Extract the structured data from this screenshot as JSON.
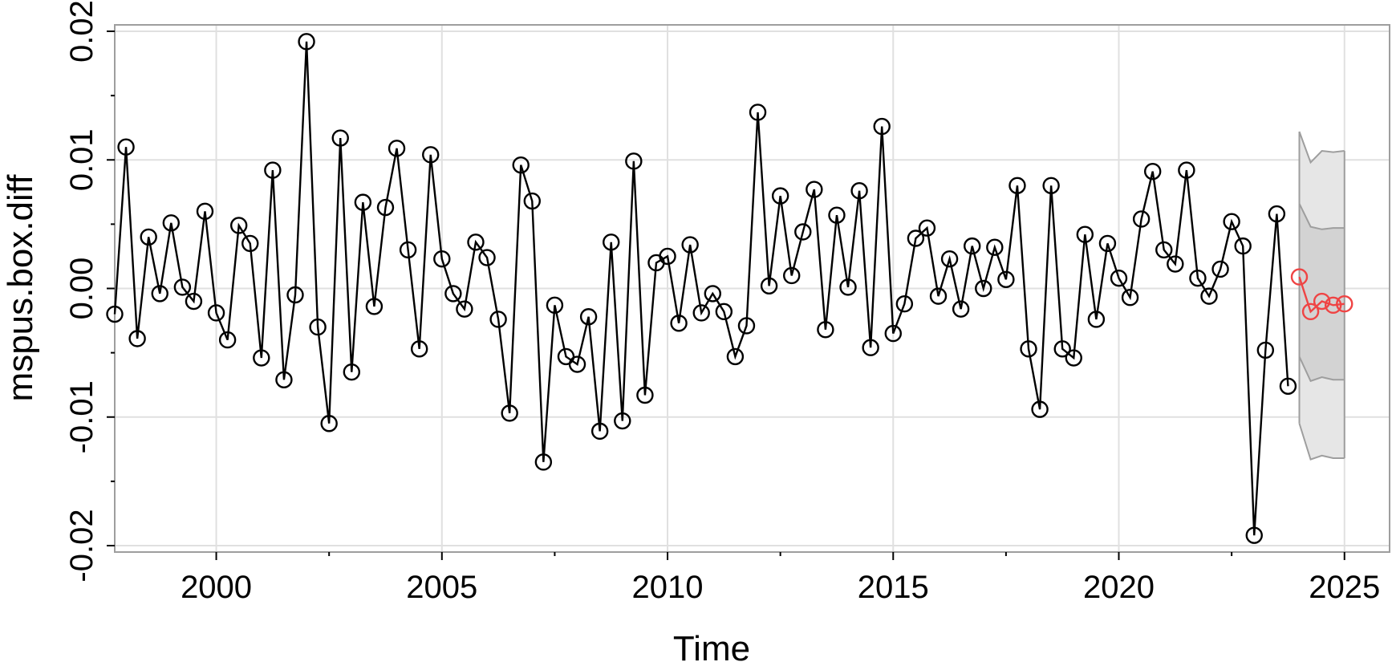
{
  "chart_data": {
    "type": "line",
    "xlabel": "Time",
    "ylabel": "mspus.box.diff",
    "xlim": [
      1997.75,
      2026.0
    ],
    "ylim": [
      -0.0205,
      0.0205
    ],
    "x_ticks": [
      2000,
      2005,
      2010,
      2015,
      2020,
      2025
    ],
    "x_tick_labels": [
      "2000",
      "2005",
      "2010",
      "2015",
      "2020",
      "2025"
    ],
    "y_ticks": [
      -0.02,
      -0.01,
      0.0,
      0.01,
      0.02
    ],
    "y_tick_labels": [
      "-0.02",
      "-0.01",
      "0.00",
      "0.01",
      "0.02"
    ],
    "grid": true,
    "colors": {
      "series": "#000000",
      "forecast": "#ef4444",
      "band80": "#d3d3d3",
      "band95": "#e6e6e6",
      "band_line": "#9e9e9e",
      "grid": "#e0e0e0",
      "frame": "#9e9e9e"
    },
    "series": [
      {
        "start": 1997.75,
        "step": 0.25,
        "values": [
          -0.002,
          0.011,
          -0.0039,
          0.004,
          -0.0004,
          0.0051,
          0.0001,
          -0.001,
          0.006,
          -0.0019,
          -0.004,
          0.0049,
          0.0035,
          -0.0054,
          0.0092,
          -0.0071,
          -0.0005,
          0.0192,
          -0.003,
          -0.0105,
          0.0117,
          -0.0065,
          0.0067,
          -0.0014,
          0.0063,
          0.0109,
          0.003,
          -0.0047,
          0.0104,
          0.0023,
          -0.0004,
          -0.0016,
          0.0036,
          0.0024,
          -0.0024,
          -0.0097,
          0.0096,
          0.0068,
          -0.0135,
          -0.0013,
          -0.0053,
          -0.0059,
          -0.0022,
          -0.0111,
          0.0036,
          -0.0103,
          0.0099,
          -0.0083,
          0.002,
          0.0025,
          -0.0027,
          0.0034,
          -0.0019,
          -0.0004,
          -0.0018,
          -0.0053,
          -0.0029,
          0.0137,
          0.0002,
          0.0072,
          0.001,
          0.0044,
          0.0077,
          -0.0032,
          0.0057,
          0.0001,
          0.0076,
          -0.0046,
          0.0126,
          -0.0035,
          -0.0012,
          0.0039,
          0.0047,
          -0.0006,
          0.0023,
          -0.0016,
          0.0033,
          0.0,
          0.0032,
          0.0007,
          0.008,
          -0.0047,
          -0.0094,
          0.008,
          -0.0047,
          -0.0054,
          0.0042,
          -0.0024,
          0.0035,
          0.0008,
          -0.0007,
          0.0054,
          0.0091,
          0.003,
          0.0019,
          0.0092,
          0.0008,
          -0.0006,
          0.0015,
          0.0052,
          0.0033,
          -0.0192,
          -0.0048,
          0.0058,
          -0.0076
        ]
      },
      {
        "start": 2024.0,
        "step": 0.25,
        "values": [
          0.0009,
          -0.0018,
          -0.001,
          -0.0013,
          -0.0012
        ],
        "lo80": [
          -0.0053,
          -0.0072,
          -0.0069,
          -0.0071,
          -0.0071
        ],
        "hi80": [
          0.0066,
          0.0048,
          0.0046,
          0.0047,
          0.0047
        ],
        "lo95": [
          -0.0105,
          -0.0133,
          -0.013,
          -0.0132,
          -0.0132
        ],
        "hi95": [
          0.0122,
          0.0098,
          0.0107,
          0.0106,
          0.0107
        ]
      }
    ]
  }
}
